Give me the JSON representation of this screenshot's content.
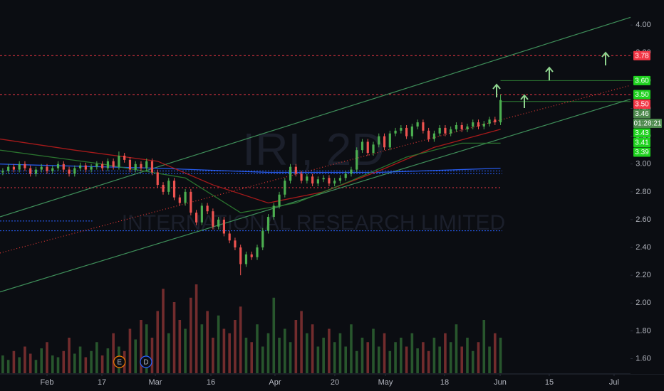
{
  "chart_data": {
    "type": "candlestick",
    "watermark": {
      "symbol": "IRI, 2D",
      "name": "INTERNATIONAL RESEARCH LIMITED"
    },
    "up_color": "#4caf50",
    "down_color": "#ef5350",
    "xlim": [
      -8.5,
      105.5
    ],
    "ylim": [
      1.49,
      4.18
    ],
    "x": [
      -8,
      -7,
      -6,
      -5,
      -4,
      -3,
      -2,
      -1,
      0,
      1,
      2,
      3,
      4,
      5,
      6,
      7,
      8,
      9,
      10,
      11,
      12,
      13,
      14,
      15,
      16,
      17,
      18,
      19,
      20,
      21,
      22,
      23,
      24,
      25,
      26,
      27,
      28,
      29,
      30,
      31,
      32,
      33,
      34,
      35,
      36,
      37,
      38,
      39,
      40,
      41,
      42,
      43,
      44,
      45,
      46,
      47,
      48,
      49,
      50,
      51,
      52,
      53,
      54,
      55,
      56,
      57,
      58,
      59,
      60,
      61,
      62,
      63,
      64,
      65,
      66,
      67,
      68,
      69,
      70,
      71,
      72,
      73,
      74,
      75,
      76,
      77,
      78,
      79,
      80,
      81,
      82
    ],
    "ohlc": [
      [
        2.94,
        2.97,
        2.92,
        2.95
      ],
      [
        2.95,
        3.0,
        2.93,
        2.98
      ],
      [
        2.98,
        3.0,
        2.94,
        2.96
      ],
      [
        2.96,
        3.02,
        2.94,
        3.0
      ],
      [
        3.0,
        3.02,
        2.95,
        2.97
      ],
      [
        2.97,
        2.99,
        2.91,
        2.93
      ],
      [
        2.93,
        2.98,
        2.91,
        2.96
      ],
      [
        2.96,
        3.0,
        2.94,
        2.98
      ],
      [
        2.98,
        3.0,
        2.93,
        2.95
      ],
      [
        2.95,
        2.99,
        2.93,
        2.97
      ],
      [
        2.97,
        3.02,
        2.95,
        3.0
      ],
      [
        3.0,
        3.02,
        2.94,
        2.96
      ],
      [
        2.96,
        2.98,
        2.91,
        2.93
      ],
      [
        2.93,
        2.99,
        2.91,
        2.97
      ],
      [
        2.97,
        3.01,
        2.95,
        2.99
      ],
      [
        2.99,
        3.01,
        2.94,
        2.96
      ],
      [
        2.96,
        3.0,
        2.94,
        2.98
      ],
      [
        2.98,
        3.02,
        2.96,
        3.0
      ],
      [
        3.0,
        3.02,
        2.95,
        2.97
      ],
      [
        2.97,
        3.04,
        2.95,
        3.02
      ],
      [
        3.02,
        3.04,
        2.96,
        2.98
      ],
      [
        2.98,
        3.09,
        2.96,
        3.06
      ],
      [
        3.06,
        3.08,
        3.01,
        3.03
      ],
      [
        3.03,
        3.05,
        2.94,
        2.96
      ],
      [
        2.96,
        3.02,
        2.94,
        3.0
      ],
      [
        3.0,
        3.02,
        2.95,
        2.97
      ],
      [
        2.97,
        3.04,
        2.95,
        3.02
      ],
      [
        3.02,
        3.04,
        2.92,
        2.94
      ],
      [
        2.94,
        2.96,
        2.83,
        2.85
      ],
      [
        2.85,
        2.87,
        2.78,
        2.8
      ],
      [
        2.8,
        2.9,
        2.78,
        2.88
      ],
      [
        2.88,
        2.9,
        2.74,
        2.76
      ],
      [
        2.76,
        2.78,
        2.7,
        2.72
      ],
      [
        2.72,
        2.82,
        2.7,
        2.8
      ],
      [
        2.8,
        2.82,
        2.63,
        2.65
      ],
      [
        2.65,
        2.67,
        2.56,
        2.58
      ],
      [
        2.58,
        2.72,
        2.56,
        2.7
      ],
      [
        2.7,
        2.72,
        2.64,
        2.66
      ],
      [
        2.66,
        2.68,
        2.53,
        2.55
      ],
      [
        2.55,
        2.62,
        2.53,
        2.6
      ],
      [
        2.6,
        2.62,
        2.48,
        2.5
      ],
      [
        2.5,
        2.52,
        2.43,
        2.45
      ],
      [
        2.45,
        2.47,
        2.38,
        2.4
      ],
      [
        2.4,
        2.42,
        2.2,
        2.28
      ],
      [
        2.28,
        2.37,
        2.26,
        2.35
      ],
      [
        2.35,
        2.37,
        2.31,
        2.33
      ],
      [
        2.33,
        2.42,
        2.31,
        2.4
      ],
      [
        2.4,
        2.54,
        2.38,
        2.52
      ],
      [
        2.52,
        2.64,
        2.5,
        2.62
      ],
      [
        2.62,
        2.72,
        2.6,
        2.7
      ],
      [
        2.7,
        2.8,
        2.68,
        2.78
      ],
      [
        2.78,
        2.9,
        2.76,
        2.88
      ],
      [
        2.88,
        3.0,
        2.86,
        2.98
      ],
      [
        2.98,
        3.0,
        2.91,
        2.93
      ],
      [
        2.93,
        2.95,
        2.86,
        2.88
      ],
      [
        2.88,
        2.93,
        2.86,
        2.91
      ],
      [
        2.91,
        2.93,
        2.84,
        2.86
      ],
      [
        2.86,
        2.91,
        2.84,
        2.89
      ],
      [
        2.89,
        2.92,
        2.87,
        2.9
      ],
      [
        2.9,
        2.92,
        2.84,
        2.86
      ],
      [
        2.86,
        2.9,
        2.84,
        2.88
      ],
      [
        2.88,
        2.92,
        2.86,
        2.9
      ],
      [
        2.9,
        2.95,
        2.88,
        2.93
      ],
      [
        2.93,
        2.98,
        2.91,
        2.96
      ],
      [
        2.96,
        3.12,
        2.94,
        3.1
      ],
      [
        3.1,
        3.18,
        3.08,
        3.16
      ],
      [
        3.16,
        3.18,
        3.06,
        3.08
      ],
      [
        3.08,
        3.16,
        3.06,
        3.14
      ],
      [
        3.14,
        3.22,
        3.12,
        3.2
      ],
      [
        3.2,
        3.22,
        3.1,
        3.12
      ],
      [
        3.12,
        3.24,
        3.1,
        3.22
      ],
      [
        3.22,
        3.26,
        3.2,
        3.24
      ],
      [
        3.24,
        3.28,
        3.22,
        3.26
      ],
      [
        3.26,
        3.28,
        3.18,
        3.2
      ],
      [
        3.2,
        3.29,
        3.18,
        3.27
      ],
      [
        3.27,
        3.32,
        3.25,
        3.3
      ],
      [
        3.3,
        3.32,
        3.22,
        3.24
      ],
      [
        3.24,
        3.26,
        3.16,
        3.18
      ],
      [
        3.18,
        3.24,
        3.16,
        3.22
      ],
      [
        3.22,
        3.28,
        3.2,
        3.26
      ],
      [
        3.26,
        3.28,
        3.2,
        3.22
      ],
      [
        3.22,
        3.27,
        3.2,
        3.25
      ],
      [
        3.25,
        3.3,
        3.23,
        3.28
      ],
      [
        3.28,
        3.3,
        3.23,
        3.25
      ],
      [
        3.25,
        3.29,
        3.23,
        3.27
      ],
      [
        3.27,
        3.32,
        3.25,
        3.3
      ],
      [
        3.3,
        3.32,
        3.25,
        3.27
      ],
      [
        3.27,
        3.31,
        3.25,
        3.29
      ],
      [
        3.29,
        3.34,
        3.27,
        3.32
      ],
      [
        3.32,
        3.34,
        3.28,
        3.3
      ],
      [
        3.3,
        3.5,
        3.28,
        3.46
      ]
    ],
    "volume": {
      "vlim": [
        0,
        100
      ],
      "values": [
        20,
        15,
        25,
        18,
        30,
        22,
        15,
        28,
        35,
        20,
        18,
        25,
        40,
        22,
        30,
        18,
        25,
        35,
        20,
        28,
        45,
        30,
        25,
        50,
        38,
        60,
        55,
        40,
        70,
        95,
        45,
        80,
        60,
        50,
        85,
        100,
        55,
        70,
        40,
        65,
        50,
        45,
        60,
        75,
        40,
        35,
        55,
        30,
        45,
        85,
        40,
        50,
        35,
        60,
        70,
        45,
        55,
        30,
        40,
        50,
        35,
        45,
        30,
        55,
        25,
        40,
        35,
        50,
        30,
        45,
        25,
        35,
        40,
        30,
        45,
        28,
        35,
        25,
        40,
        30,
        45,
        35,
        55,
        30,
        40,
        25,
        35,
        60,
        30,
        45,
        40
      ]
    },
    "moving_averages": [
      {
        "color": "#2962ff",
        "x": [
          -8.5,
          0,
          20,
          40,
          60,
          82
        ],
        "values": [
          3.0,
          2.99,
          2.97,
          2.94,
          2.94,
          2.97
        ]
      },
      {
        "color": "#b71c1c",
        "x": [
          -8.5,
          5,
          20,
          30,
          40,
          50,
          60,
          70,
          82
        ],
        "values": [
          3.18,
          3.1,
          3.02,
          2.85,
          2.72,
          2.8,
          2.95,
          3.12,
          3.25
        ]
      },
      {
        "color": "#2e7d32",
        "x": [
          -8.5,
          10,
          25,
          35,
          45,
          55,
          65,
          75,
          82
        ],
        "values": [
          3.1,
          3.0,
          2.9,
          2.65,
          2.72,
          2.88,
          3.05,
          3.15,
          3.15
        ]
      }
    ],
    "levels": [
      {
        "value": 3.78,
        "x": [
          -8.5,
          105.5
        ],
        "color": "#f23645",
        "dash": "3,3"
      },
      {
        "value": 3.5,
        "x": [
          -8.5,
          105.5
        ],
        "color": "#f23645",
        "dash": "3,3"
      },
      {
        "value": 2.83,
        "x": [
          -8.5,
          82.3
        ],
        "color": "#f23645",
        "dash": "2,3"
      },
      {
        "value": 2.95,
        "x": [
          -8.5,
          82.3
        ],
        "color": "#2962ff",
        "dash": "2,2"
      },
      {
        "value": 2.93,
        "x": [
          -8.5,
          82.3
        ],
        "color": "#2962ff",
        "dash": "2,2"
      },
      {
        "value": 2.52,
        "x": [
          -8.5,
          82.3
        ],
        "color": "#2962ff",
        "dash": "2,2"
      },
      {
        "value": 2.59,
        "x": [
          -8.5,
          8.2
        ],
        "color": "#2962ff",
        "dash": "2,2"
      },
      {
        "value": 3.6,
        "x": [
          82,
          105.5
        ],
        "color": "#2e7d32",
        "dash": "none"
      },
      {
        "value": 3.45,
        "x": [
          82,
          105.5
        ],
        "color": "#2e7d32",
        "dash": "none"
      }
    ],
    "trendlines": [
      {
        "x": [
          -8.5,
          105.88
        ],
        "y": [
          2.62,
          4.06
        ],
        "color": "#3f8f5a",
        "dash": "none"
      },
      {
        "x": [
          -8.5,
          111.55
        ],
        "y": [
          2.08,
          3.54
        ],
        "color": "#3f8f5a",
        "dash": "none"
      },
      {
        "x": [
          -8.5,
          105.88
        ],
        "y": [
          2.36,
          3.57
        ],
        "color": "#e53935",
        "dash": "1,3"
      }
    ],
    "xticks": [
      {
        "value": 0,
        "label": "Feb"
      },
      {
        "value": 9.92,
        "label": "17"
      },
      {
        "value": 19.58,
        "label": "Mar"
      },
      {
        "value": 29.63,
        "label": "16"
      },
      {
        "value": 41.22,
        "label": "Apr"
      },
      {
        "value": 52.04,
        "label": "20"
      },
      {
        "value": 61.19,
        "label": "May"
      },
      {
        "value": 71.88,
        "label": "18"
      },
      {
        "value": 81.93,
        "label": "Jun"
      },
      {
        "value": 90.81,
        "label": "15"
      },
      {
        "value": 102.53,
        "label": "Jul"
      }
    ],
    "yticks": [
      {
        "value": 4,
        "label": "4.00"
      },
      {
        "value": 3.8,
        "label": "3.80"
      },
      {
        "value": 3.6,
        "label": "3.60"
      },
      {
        "value": 3.4,
        "label": "3.40"
      },
      {
        "value": 3.2,
        "label": "3.20"
      },
      {
        "value": 3,
        "label": "3.00"
      },
      {
        "value": 2.8,
        "label": "2.80"
      },
      {
        "value": 2.6,
        "label": "2.60"
      },
      {
        "value": 2.4,
        "label": "2.40"
      },
      {
        "value": 2.2,
        "label": "2.20"
      },
      {
        "value": 2,
        "label": "2.00"
      },
      {
        "value": 1.8,
        "label": "1.80"
      },
      {
        "value": 1.6,
        "label": "1.60"
      }
    ],
    "price_labels": [
      {
        "value": 3.78,
        "label": "3.78",
        "color": "#f23645"
      },
      {
        "value": 3.6,
        "label": "3.60",
        "color": "#1fd21f"
      },
      {
        "value": 3.5,
        "label": "3.50",
        "color": "#1fd21f"
      },
      {
        "value": 3.5,
        "label": "3.50",
        "color": "#f23645"
      },
      {
        "value": 3.46,
        "label": "3.46",
        "color": "#4e8a4e"
      },
      {
        "value": 3.43,
        "label": "3.43",
        "color": "#1fd21f"
      },
      {
        "value": 3.41,
        "label": "3.41",
        "color": "#1fd21f"
      },
      {
        "value": 3.39,
        "label": "3.39",
        "color": "#1fd21f"
      }
    ],
    "countdown": "01:28:21",
    "events": [
      {
        "x": 13.1,
        "label": "E",
        "color": "#f57c00"
      },
      {
        "x": 17.9,
        "label": "D",
        "color": "#2962ff"
      }
    ]
  }
}
